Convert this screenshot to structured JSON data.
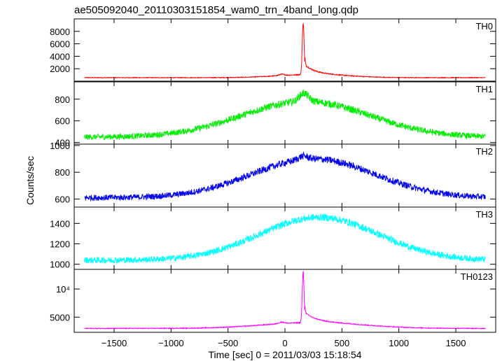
{
  "chart_data": {
    "type": "line",
    "title": "ae505092040_20110303151854_wam0_trn_4band_long.qdp",
    "xlabel": "Time [sec] 0 = 2011/03/03 15:18:54",
    "ylabel": "Counts/sec",
    "xlim": [
      -1850,
      1850
    ],
    "xticks": [
      -1500,
      -1000,
      -500,
      0,
      500,
      1000,
      1500
    ],
    "xtick_labels": [
      "−1500",
      "−1000",
      "−500",
      "0",
      "500",
      "1000",
      "1500"
    ],
    "panels": [
      {
        "name": "TH0",
        "color": "#ff0000",
        "ylim": [
          0,
          10000
        ],
        "yticks": [
          2000,
          4000,
          6000,
          8000
        ],
        "ytick_labels": [
          "2000",
          "4000",
          "6000",
          "8000"
        ],
        "profile": {
          "base": 560,
          "broad_amp": 520,
          "broad_center": 250,
          "broad_sigma": 300,
          "noise": 55,
          "spike_amp": 8400,
          "spike_center": 160,
          "spike_width": 8,
          "tail_amp": 1600,
          "tail_start": 175,
          "tail_tau": 90,
          "bump_amp": 200,
          "bump_center": -30,
          "bump_width": 25
        }
      },
      {
        "name": "TH1",
        "color": "#00ee00",
        "ylim": [
          385,
          960
        ],
        "yticks": [
          400,
          600,
          800
        ],
        "ytick_labels": [
          "400",
          "600",
          "800"
        ],
        "profile": {
          "base": 450,
          "broad_amp": 330,
          "broad_center": 180,
          "broad_sigma": 560,
          "noise": 26,
          "spike_amp": 75,
          "spike_center": 165,
          "spike_width": 40,
          "tail_amp": 0,
          "tail_start": 0,
          "tail_tau": 1,
          "bump_amp": 0,
          "bump_center": 0,
          "bump_width": 1
        }
      },
      {
        "name": "TH2",
        "color": "#0000ee",
        "ylim": [
          540,
          1010
        ],
        "yticks": [
          600,
          800,
          1000
        ],
        "ytick_labels": [
          "600",
          "800",
          "1000"
        ],
        "profile": {
          "base": 610,
          "broad_amp": 290,
          "broad_center": 250,
          "broad_sigma": 540,
          "noise": 22,
          "spike_amp": 25,
          "spike_center": 160,
          "spike_width": 40,
          "tail_amp": 0,
          "tail_start": 0,
          "tail_tau": 1,
          "bump_amp": 0,
          "bump_center": 0,
          "bump_width": 1
        }
      },
      {
        "name": "TH3",
        "color": "#00ffff",
        "ylim": [
          950,
          1560
        ],
        "yticks": [
          1000,
          1200,
          1400
        ],
        "ytick_labels": [
          "1000",
          "1200",
          "1400"
        ],
        "profile": {
          "base": 1040,
          "broad_amp": 420,
          "broad_center": 300,
          "broad_sigma": 520,
          "noise": 30,
          "spike_amp": 0,
          "spike_center": 0,
          "spike_width": 1,
          "tail_amp": 0,
          "tail_start": 0,
          "tail_tau": 1,
          "bump_amp": 0,
          "bump_center": 0,
          "bump_width": 1
        }
      },
      {
        "name": "TH0123",
        "color": "#ff00ff",
        "ylim": [
          2300,
          13500
        ],
        "yticks": [
          5000,
          10000
        ],
        "ytick_labels": [
          "5000",
          "10⁴"
        ],
        "profile": {
          "base": 3000,
          "broad_amp": 1050,
          "broad_center": 250,
          "broad_sigma": 430,
          "noise": 70,
          "spike_amp": 9000,
          "spike_center": 160,
          "spike_width": 8,
          "tail_amp": 1800,
          "tail_start": 175,
          "tail_tau": 100,
          "bump_amp": 250,
          "bump_center": -30,
          "bump_width": 25
        }
      }
    ],
    "grid": false,
    "legend": "none"
  }
}
